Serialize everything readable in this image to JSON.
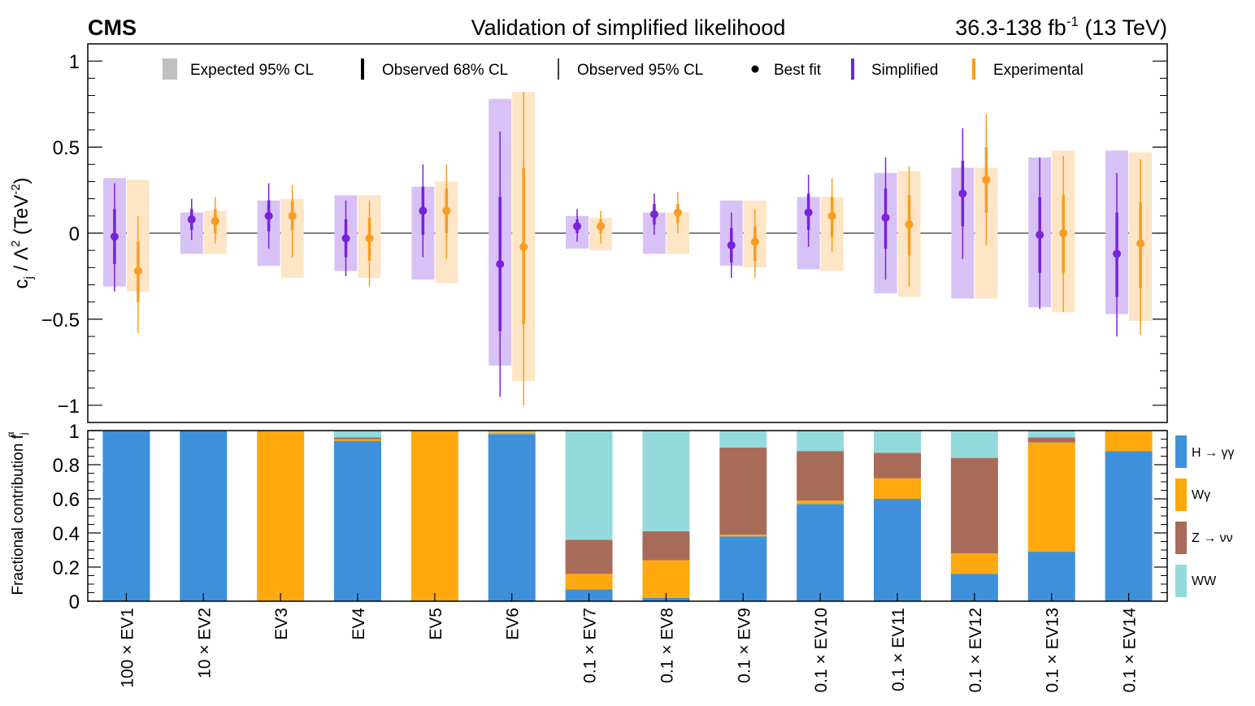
{
  "header": {
    "experiment": "CMS",
    "title": "Validation of simplified likelihood",
    "lumi_prefix": "36.3-138 fb",
    "lumi_exp": "-1",
    "lumi_suffix": " (13 TeV)"
  },
  "legend_top": {
    "expected95": "Expected 95% CL",
    "observed68": "Observed 68% CL",
    "observed95": "Observed 95% CL",
    "bestfit": "Best fit",
    "simplified": "Simplified",
    "experimental": "Experimental"
  },
  "axis_labels": {
    "top_y_main": "c",
    "top_y_sub": "j",
    "top_y_mid": " / Λ",
    "top_y_sup": "2",
    "top_y_unit": " (TeV",
    "top_y_unit_sup": "-2",
    "top_y_close": ")",
    "bottom_y_main": "Fractional contribution f",
    "bottom_y_sub": "j",
    "bottom_y_sup": "α"
  },
  "colors": {
    "simplified": "#7a21dd",
    "simplified_band": "#d8c2f5",
    "experimental": "#f89c20",
    "experimental_band": "#fde5c5",
    "hgg": "#3f90da",
    "wg": "#ffa90e",
    "znn": "#a96b59",
    "ww": "#94dadd"
  },
  "chart_data": [
    {
      "type": "scatter",
      "name": "top-panel",
      "ylim": [
        -1.1,
        1.1
      ],
      "yticks": [
        -1,
        -0.5,
        0,
        0.5,
        1
      ],
      "ytick_labels": [
        "−1",
        "−0.5",
        "0",
        "0.5",
        "1"
      ],
      "categories": [
        "100 × EV1",
        "10 × EV2",
        "EV3",
        "EV4",
        "EV5",
        "EV6",
        "0.1 × EV7",
        "0.1 × EV8",
        "0.1 × EV9",
        "0.1 × EV10",
        "0.1 × EV11",
        "0.1 × EV12",
        "0.1 × EV13",
        "0.1 × EV14"
      ],
      "series": [
        {
          "name": "Simplified",
          "best": [
            -0.02,
            0.08,
            0.1,
            -0.03,
            0.13,
            -0.18,
            0.04,
            0.11,
            -0.07,
            0.12,
            0.09,
            0.23,
            -0.01,
            -0.12
          ],
          "obs68": [
            [
              -0.18,
              0.14
            ],
            [
              0.02,
              0.14
            ],
            [
              0.01,
              0.19
            ],
            [
              -0.14,
              0.08
            ],
            [
              -0.01,
              0.27
            ],
            [
              -0.57,
              0.21
            ],
            [
              0.0,
              0.08
            ],
            [
              0.05,
              0.17
            ],
            [
              -0.17,
              0.03
            ],
            [
              0.02,
              0.23
            ],
            [
              -0.09,
              0.26
            ],
            [
              0.04,
              0.42
            ],
            [
              -0.23,
              0.21
            ],
            [
              -0.37,
              0.12
            ]
          ],
          "obs95": [
            [
              -0.34,
              0.29
            ],
            [
              -0.04,
              0.2
            ],
            [
              -0.09,
              0.29
            ],
            [
              -0.25,
              0.19
            ],
            [
              -0.14,
              0.4
            ],
            [
              -0.95,
              0.59
            ],
            [
              -0.05,
              0.14
            ],
            [
              -0.01,
              0.23
            ],
            [
              -0.26,
              0.12
            ],
            [
              -0.08,
              0.34
            ],
            [
              -0.27,
              0.44
            ],
            [
              -0.15,
              0.61
            ],
            [
              -0.44,
              0.44
            ],
            [
              -0.6,
              0.35
            ]
          ],
          "exp95": [
            [
              -0.31,
              0.32
            ],
            [
              -0.12,
              0.12
            ],
            [
              -0.19,
              0.19
            ],
            [
              -0.22,
              0.22
            ],
            [
              -0.27,
              0.27
            ],
            [
              -0.77,
              0.78
            ],
            [
              -0.09,
              0.1
            ],
            [
              -0.12,
              0.12
            ],
            [
              -0.19,
              0.19
            ],
            [
              -0.21,
              0.21
            ],
            [
              -0.35,
              0.35
            ],
            [
              -0.38,
              0.38
            ],
            [
              -0.43,
              0.44
            ],
            [
              -0.47,
              0.48
            ]
          ]
        },
        {
          "name": "Experimental",
          "best": [
            -0.22,
            0.07,
            0.1,
            -0.03,
            0.13,
            -0.08,
            0.04,
            0.12,
            -0.05,
            0.1,
            0.05,
            0.31,
            0.0,
            -0.06
          ],
          "obs68": [
            [
              -0.4,
              -0.05
            ],
            [
              0.0,
              0.14
            ],
            [
              0.02,
              0.19
            ],
            [
              -0.16,
              0.09
            ],
            [
              0.0,
              0.26
            ],
            [
              -0.53,
              0.38
            ],
            [
              0.0,
              0.08
            ],
            [
              0.06,
              0.17
            ],
            [
              -0.16,
              0.04
            ],
            [
              -0.02,
              0.21
            ],
            [
              -0.13,
              0.22
            ],
            [
              0.12,
              0.5
            ],
            [
              -0.23,
              0.22
            ],
            [
              -0.32,
              0.18
            ]
          ],
          "obs95": [
            [
              -0.58,
              0.1
            ],
            [
              -0.06,
              0.21
            ],
            [
              -0.14,
              0.28
            ],
            [
              -0.31,
              0.19
            ],
            [
              -0.15,
              0.4
            ],
            [
              -1.0,
              0.82
            ],
            [
              -0.06,
              0.13
            ],
            [
              0.0,
              0.24
            ],
            [
              -0.26,
              0.14
            ],
            [
              -0.11,
              0.32
            ],
            [
              -0.31,
              0.39
            ],
            [
              -0.07,
              0.69
            ],
            [
              -0.46,
              0.45
            ],
            [
              -0.59,
              0.43
            ]
          ],
          "exp95": [
            [
              -0.34,
              0.31
            ],
            [
              -0.12,
              0.13
            ],
            [
              -0.26,
              0.2
            ],
            [
              -0.26,
              0.22
            ],
            [
              -0.29,
              0.3
            ],
            [
              -0.86,
              0.82
            ],
            [
              -0.1,
              0.09
            ],
            [
              -0.12,
              0.12
            ],
            [
              -0.2,
              0.19
            ],
            [
              -0.22,
              0.21
            ],
            [
              -0.37,
              0.36
            ],
            [
              -0.38,
              0.38
            ],
            [
              -0.46,
              0.48
            ],
            [
              -0.51,
              0.47
            ]
          ]
        }
      ]
    },
    {
      "type": "bar",
      "name": "bottom-panel",
      "stacked": true,
      "ylim": [
        0,
        1
      ],
      "yticks": [
        0,
        0.2,
        0.4,
        0.6,
        0.8,
        1
      ],
      "ytick_labels": [
        "0",
        "0.2",
        "0.4",
        "0.6",
        "0.8",
        "1"
      ],
      "categories": [
        "100 × EV1",
        "10 × EV2",
        "EV3",
        "EV4",
        "EV5",
        "EV6",
        "0.1 × EV7",
        "0.1 × EV8",
        "0.1 × EV9",
        "0.1 × EV10",
        "0.1 × EV11",
        "0.1 × EV12",
        "0.1 × EV13",
        "0.1 × EV14"
      ],
      "legend": "right",
      "series": [
        {
          "name": "H → γγ",
          "values": [
            1.0,
            1.0,
            0.0,
            0.94,
            0.0,
            0.98,
            0.07,
            0.02,
            0.38,
            0.57,
            0.6,
            0.16,
            0.29,
            0.88
          ]
        },
        {
          "name": "Wγ",
          "values": [
            0.0,
            0.0,
            1.0,
            0.01,
            1.0,
            0.01,
            0.09,
            0.22,
            0.01,
            0.02,
            0.12,
            0.12,
            0.64,
            0.12
          ]
        },
        {
          "name": "Z → νν",
          "values": [
            0.0,
            0.0,
            0.0,
            0.01,
            0.0,
            0.0,
            0.2,
            0.17,
            0.51,
            0.29,
            0.15,
            0.56,
            0.03,
            0.0
          ]
        },
        {
          "name": "WW",
          "values": [
            0.0,
            0.0,
            0.0,
            0.04,
            0.0,
            0.01,
            0.64,
            0.59,
            0.1,
            0.12,
            0.13,
            0.16,
            0.04,
            0.0
          ]
        }
      ]
    }
  ]
}
